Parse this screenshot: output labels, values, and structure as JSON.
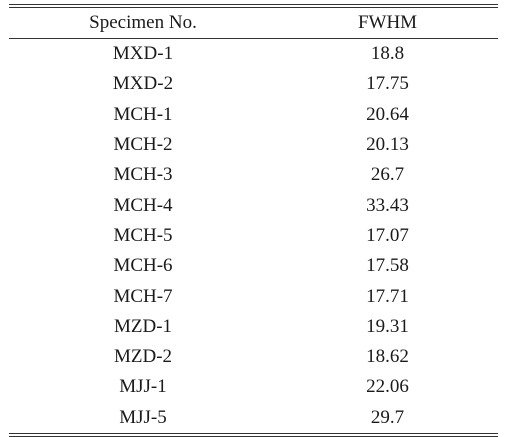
{
  "table": {
    "headers": [
      "Specimen No.",
      "FWHM"
    ],
    "rows": [
      [
        "MXD-1",
        "18.8"
      ],
      [
        "MXD-2",
        "17.75"
      ],
      [
        "MCH-1",
        "20.64"
      ],
      [
        "MCH-2",
        "20.13"
      ],
      [
        "MCH-3",
        "26.7"
      ],
      [
        "MCH-4",
        "33.43"
      ],
      [
        "MCH-5",
        "17.07"
      ],
      [
        "MCH-6",
        "17.58"
      ],
      [
        "MCH-7",
        "17.71"
      ],
      [
        "MZD-1",
        "19.31"
      ],
      [
        "MZD-2",
        "18.62"
      ],
      [
        "MJJ-1",
        "22.06"
      ],
      [
        "MJJ-5",
        "29.7"
      ]
    ]
  }
}
